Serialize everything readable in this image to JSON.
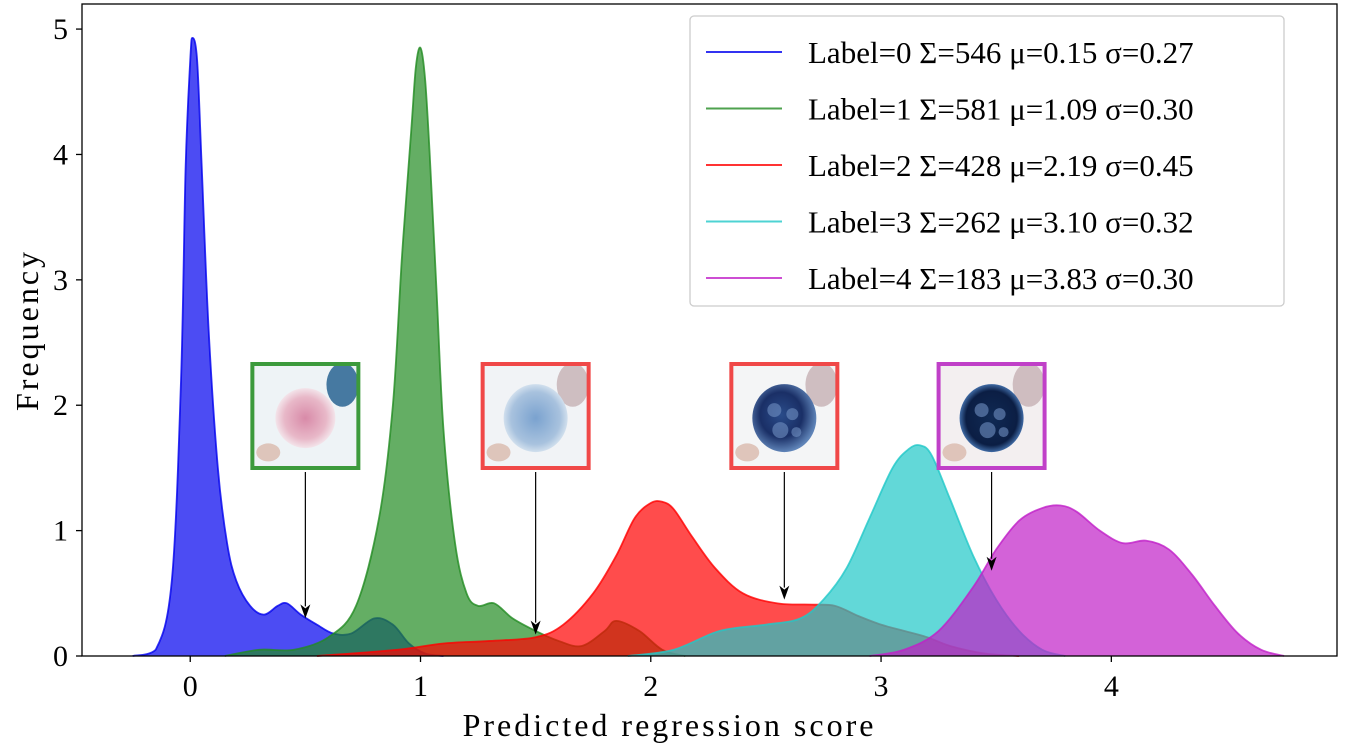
{
  "chart_data": {
    "type": "area",
    "title": "",
    "xlabel": "Predicted regression score",
    "ylabel": "Frequency",
    "xlim": [
      -0.47,
      4.98
    ],
    "ylim": [
      0,
      5.2
    ],
    "xticks": [
      0,
      1,
      2,
      3,
      4
    ],
    "yticks": [
      0,
      1,
      2,
      3,
      4,
      5
    ],
    "grid": false,
    "legend_position": "top-right",
    "series": [
      {
        "name": "Label=0 Σ=546 μ=0.15 σ=0.27",
        "color": "#0000ee",
        "x": [
          -0.25,
          -0.15,
          -0.08,
          -0.04,
          -0.02,
          0,
          0.01,
          0.03,
          0.05,
          0.08,
          0.12,
          0.16,
          0.2,
          0.26,
          0.32,
          0.38,
          0.42,
          0.48,
          0.55,
          0.62,
          0.7,
          0.8,
          0.88,
          0.95,
          1.02,
          1.1
        ],
        "y": [
          0,
          0.05,
          0.6,
          2.2,
          3.9,
          4.75,
          4.93,
          4.75,
          3.9,
          2.6,
          1.5,
          0.9,
          0.6,
          0.4,
          0.33,
          0.4,
          0.42,
          0.33,
          0.25,
          0.18,
          0.18,
          0.3,
          0.25,
          0.1,
          0.02,
          0
        ]
      },
      {
        "name": "Label=1 Σ=581 μ=1.09 σ=0.30",
        "color": "#228b22",
        "x": [
          0.15,
          0.3,
          0.45,
          0.6,
          0.72,
          0.82,
          0.88,
          0.92,
          0.96,
          0.98,
          1.0,
          1.02,
          1.04,
          1.07,
          1.1,
          1.15,
          1.2,
          1.25,
          1.32,
          1.4,
          1.5,
          1.6,
          1.7,
          1.8,
          1.85,
          1.95,
          2.05,
          2.15
        ],
        "y": [
          0,
          0.05,
          0.05,
          0.15,
          0.4,
          1.1,
          2.0,
          3.2,
          4.2,
          4.7,
          4.85,
          4.6,
          4.0,
          2.9,
          1.8,
          0.9,
          0.5,
          0.4,
          0.42,
          0.3,
          0.2,
          0.12,
          0.08,
          0.2,
          0.28,
          0.2,
          0.05,
          0
        ]
      },
      {
        "name": "Label=2 Σ=428 μ=2.19 σ=0.45",
        "color": "#ff0000",
        "x": [
          0.55,
          0.9,
          1.1,
          1.3,
          1.5,
          1.62,
          1.75,
          1.85,
          1.93,
          2.0,
          2.05,
          2.1,
          2.18,
          2.28,
          2.4,
          2.55,
          2.7,
          2.8,
          2.9,
          3.0,
          3.1,
          3.2,
          3.3,
          3.45,
          3.6
        ],
        "y": [
          0,
          0.05,
          0.1,
          0.12,
          0.15,
          0.25,
          0.5,
          0.8,
          1.1,
          1.22,
          1.23,
          1.17,
          0.95,
          0.7,
          0.5,
          0.42,
          0.41,
          0.4,
          0.32,
          0.25,
          0.2,
          0.15,
          0.08,
          0.02,
          0
        ]
      },
      {
        "name": "Label=3 Σ=262 μ=3.10 σ=0.32",
        "color": "#20c8c8",
        "x": [
          1.9,
          2.1,
          2.3,
          2.5,
          2.65,
          2.75,
          2.85,
          2.95,
          3.05,
          3.12,
          3.17,
          3.22,
          3.3,
          3.4,
          3.5,
          3.6,
          3.7,
          3.8
        ],
        "y": [
          0,
          0.05,
          0.2,
          0.25,
          0.3,
          0.45,
          0.7,
          1.1,
          1.5,
          1.65,
          1.68,
          1.6,
          1.25,
          0.8,
          0.45,
          0.2,
          0.05,
          0
        ]
      },
      {
        "name": "Label=4 Σ=183 μ=3.83 σ=0.30",
        "color": "#c020c8",
        "x": [
          2.95,
          3.1,
          3.25,
          3.4,
          3.5,
          3.6,
          3.7,
          3.78,
          3.85,
          3.95,
          4.05,
          4.15,
          4.25,
          4.35,
          4.45,
          4.55,
          4.65,
          4.75
        ],
        "y": [
          0,
          0.05,
          0.2,
          0.55,
          0.85,
          1.08,
          1.18,
          1.2,
          1.15,
          1.0,
          0.9,
          0.92,
          0.85,
          0.65,
          0.4,
          0.18,
          0.05,
          0
        ]
      }
    ],
    "thumbnails": [
      {
        "label": "1",
        "border": "#3c9a3c",
        "points_to_x": 0.5
      },
      {
        "label": "2",
        "border": "#f04848",
        "points_to_x": 1.5
      },
      {
        "label": "2",
        "border": "#f04848",
        "points_to_x": 2.58
      },
      {
        "label": "4",
        "border": "#c040c8",
        "points_to_x": 3.48
      }
    ]
  }
}
